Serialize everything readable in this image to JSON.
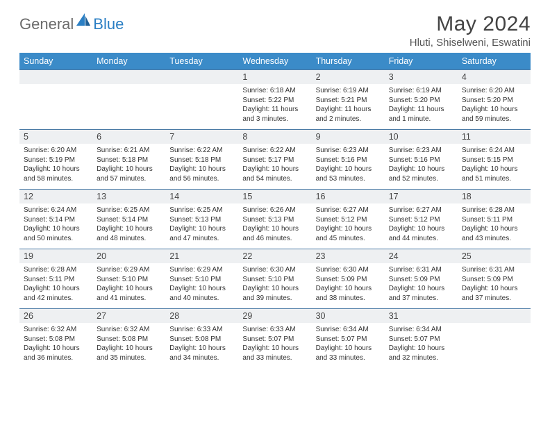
{
  "brand": {
    "text1": "General",
    "text2": "Blue"
  },
  "title": "May 2024",
  "location": "Hluti, Shiselweni, Eswatini",
  "weekdays": [
    "Sunday",
    "Monday",
    "Tuesday",
    "Wednesday",
    "Thursday",
    "Friday",
    "Saturday"
  ],
  "colors": {
    "header_bg": "#3b8bc8",
    "header_text": "#ffffff",
    "daynum_bg": "#eef0f2",
    "border_top": "#4a7aa5",
    "logo_gray": "#6b6b6b",
    "logo_blue": "#2b7fc4"
  },
  "fonts": {
    "title_size": 30,
    "location_size": 15,
    "weekday_size": 12.5,
    "daynum_size": 12.5,
    "cell_size": 10
  },
  "weeks": [
    {
      "nums": [
        "",
        "",
        "",
        "1",
        "2",
        "3",
        "4"
      ],
      "cells": [
        {
          "sunrise": "",
          "sunset": "",
          "daylight": ""
        },
        {
          "sunrise": "",
          "sunset": "",
          "daylight": ""
        },
        {
          "sunrise": "",
          "sunset": "",
          "daylight": ""
        },
        {
          "sunrise": "Sunrise: 6:18 AM",
          "sunset": "Sunset: 5:22 PM",
          "daylight": "Daylight: 11 hours and 3 minutes."
        },
        {
          "sunrise": "Sunrise: 6:19 AM",
          "sunset": "Sunset: 5:21 PM",
          "daylight": "Daylight: 11 hours and 2 minutes."
        },
        {
          "sunrise": "Sunrise: 6:19 AM",
          "sunset": "Sunset: 5:20 PM",
          "daylight": "Daylight: 11 hours and 1 minute."
        },
        {
          "sunrise": "Sunrise: 6:20 AM",
          "sunset": "Sunset: 5:20 PM",
          "daylight": "Daylight: 10 hours and 59 minutes."
        }
      ]
    },
    {
      "nums": [
        "5",
        "6",
        "7",
        "8",
        "9",
        "10",
        "11"
      ],
      "cells": [
        {
          "sunrise": "Sunrise: 6:20 AM",
          "sunset": "Sunset: 5:19 PM",
          "daylight": "Daylight: 10 hours and 58 minutes."
        },
        {
          "sunrise": "Sunrise: 6:21 AM",
          "sunset": "Sunset: 5:18 PM",
          "daylight": "Daylight: 10 hours and 57 minutes."
        },
        {
          "sunrise": "Sunrise: 6:22 AM",
          "sunset": "Sunset: 5:18 PM",
          "daylight": "Daylight: 10 hours and 56 minutes."
        },
        {
          "sunrise": "Sunrise: 6:22 AM",
          "sunset": "Sunset: 5:17 PM",
          "daylight": "Daylight: 10 hours and 54 minutes."
        },
        {
          "sunrise": "Sunrise: 6:23 AM",
          "sunset": "Sunset: 5:16 PM",
          "daylight": "Daylight: 10 hours and 53 minutes."
        },
        {
          "sunrise": "Sunrise: 6:23 AM",
          "sunset": "Sunset: 5:16 PM",
          "daylight": "Daylight: 10 hours and 52 minutes."
        },
        {
          "sunrise": "Sunrise: 6:24 AM",
          "sunset": "Sunset: 5:15 PM",
          "daylight": "Daylight: 10 hours and 51 minutes."
        }
      ]
    },
    {
      "nums": [
        "12",
        "13",
        "14",
        "15",
        "16",
        "17",
        "18"
      ],
      "cells": [
        {
          "sunrise": "Sunrise: 6:24 AM",
          "sunset": "Sunset: 5:14 PM",
          "daylight": "Daylight: 10 hours and 50 minutes."
        },
        {
          "sunrise": "Sunrise: 6:25 AM",
          "sunset": "Sunset: 5:14 PM",
          "daylight": "Daylight: 10 hours and 48 minutes."
        },
        {
          "sunrise": "Sunrise: 6:25 AM",
          "sunset": "Sunset: 5:13 PM",
          "daylight": "Daylight: 10 hours and 47 minutes."
        },
        {
          "sunrise": "Sunrise: 6:26 AM",
          "sunset": "Sunset: 5:13 PM",
          "daylight": "Daylight: 10 hours and 46 minutes."
        },
        {
          "sunrise": "Sunrise: 6:27 AM",
          "sunset": "Sunset: 5:12 PM",
          "daylight": "Daylight: 10 hours and 45 minutes."
        },
        {
          "sunrise": "Sunrise: 6:27 AM",
          "sunset": "Sunset: 5:12 PM",
          "daylight": "Daylight: 10 hours and 44 minutes."
        },
        {
          "sunrise": "Sunrise: 6:28 AM",
          "sunset": "Sunset: 5:11 PM",
          "daylight": "Daylight: 10 hours and 43 minutes."
        }
      ]
    },
    {
      "nums": [
        "19",
        "20",
        "21",
        "22",
        "23",
        "24",
        "25"
      ],
      "cells": [
        {
          "sunrise": "Sunrise: 6:28 AM",
          "sunset": "Sunset: 5:11 PM",
          "daylight": "Daylight: 10 hours and 42 minutes."
        },
        {
          "sunrise": "Sunrise: 6:29 AM",
          "sunset": "Sunset: 5:10 PM",
          "daylight": "Daylight: 10 hours and 41 minutes."
        },
        {
          "sunrise": "Sunrise: 6:29 AM",
          "sunset": "Sunset: 5:10 PM",
          "daylight": "Daylight: 10 hours and 40 minutes."
        },
        {
          "sunrise": "Sunrise: 6:30 AM",
          "sunset": "Sunset: 5:10 PM",
          "daylight": "Daylight: 10 hours and 39 minutes."
        },
        {
          "sunrise": "Sunrise: 6:30 AM",
          "sunset": "Sunset: 5:09 PM",
          "daylight": "Daylight: 10 hours and 38 minutes."
        },
        {
          "sunrise": "Sunrise: 6:31 AM",
          "sunset": "Sunset: 5:09 PM",
          "daylight": "Daylight: 10 hours and 37 minutes."
        },
        {
          "sunrise": "Sunrise: 6:31 AM",
          "sunset": "Sunset: 5:09 PM",
          "daylight": "Daylight: 10 hours and 37 minutes."
        }
      ]
    },
    {
      "nums": [
        "26",
        "27",
        "28",
        "29",
        "30",
        "31",
        ""
      ],
      "cells": [
        {
          "sunrise": "Sunrise: 6:32 AM",
          "sunset": "Sunset: 5:08 PM",
          "daylight": "Daylight: 10 hours and 36 minutes."
        },
        {
          "sunrise": "Sunrise: 6:32 AM",
          "sunset": "Sunset: 5:08 PM",
          "daylight": "Daylight: 10 hours and 35 minutes."
        },
        {
          "sunrise": "Sunrise: 6:33 AM",
          "sunset": "Sunset: 5:08 PM",
          "daylight": "Daylight: 10 hours and 34 minutes."
        },
        {
          "sunrise": "Sunrise: 6:33 AM",
          "sunset": "Sunset: 5:07 PM",
          "daylight": "Daylight: 10 hours and 33 minutes."
        },
        {
          "sunrise": "Sunrise: 6:34 AM",
          "sunset": "Sunset: 5:07 PM",
          "daylight": "Daylight: 10 hours and 33 minutes."
        },
        {
          "sunrise": "Sunrise: 6:34 AM",
          "sunset": "Sunset: 5:07 PM",
          "daylight": "Daylight: 10 hours and 32 minutes."
        },
        {
          "sunrise": "",
          "sunset": "",
          "daylight": ""
        }
      ]
    }
  ]
}
